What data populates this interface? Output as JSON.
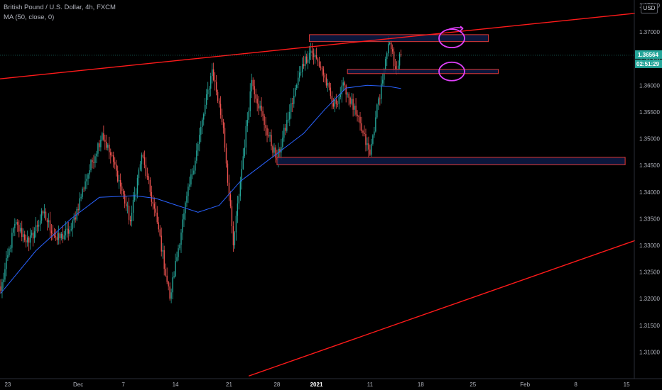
{
  "header": {
    "symbol_line": "British Pound / U.S. Dollar, 4h, FXCM",
    "indicator_line": "MA (50, close, 0)"
  },
  "currency_button": "USD",
  "colors": {
    "background": "#000000",
    "up_candle": "#26a69a",
    "down_candle": "#ef5350",
    "moving_average": "#2962ff",
    "trendline": "#ff1a1a",
    "zone_fill": "#0d1a45",
    "zone_border": "#e53935",
    "annotation": "#e040fb",
    "price_tag": "#26a69a"
  },
  "chart_data": {
    "type": "candlestick",
    "symbol": "British Pound / U.S. Dollar",
    "timeframe": "4h",
    "source": "FXCM",
    "ylim": [
      1.305,
      1.376
    ],
    "y_ticks": [
      "1.37500",
      "1.37000",
      "1.36500",
      "1.36000",
      "1.35500",
      "1.35000",
      "1.34500",
      "1.34000",
      "1.33500",
      "1.33000",
      "1.32500",
      "1.32000",
      "1.31500",
      "1.31000"
    ],
    "x_ticks": [
      {
        "label": "23",
        "bar": 5
      },
      {
        "label": "Dec",
        "bar": 55
      },
      {
        "label": "7",
        "bar": 87
      },
      {
        "label": "14",
        "bar": 124
      },
      {
        "label": "21",
        "bar": 162
      },
      {
        "label": "28",
        "bar": 196
      },
      {
        "label": "2021",
        "bar": 224,
        "bold": true
      },
      {
        "label": "11",
        "bar": 262
      },
      {
        "label": "18",
        "bar": 298
      },
      {
        "label": "25",
        "bar": 335
      },
      {
        "label": "Feb",
        "bar": 372
      },
      {
        "label": "8",
        "bar": 408
      },
      {
        "label": "15",
        "bar": 444
      }
    ],
    "last_bar_index": 284,
    "total_slots": 450,
    "current_price": "1.36564",
    "countdown": "02:51:29",
    "key_closes": [
      {
        "bar": 0,
        "close": 1.3215
      },
      {
        "bar": 10,
        "close": 1.334
      },
      {
        "bar": 20,
        "close": 1.3305
      },
      {
        "bar": 30,
        "close": 1.336
      },
      {
        "bar": 40,
        "close": 1.331
      },
      {
        "bar": 50,
        "close": 1.333
      },
      {
        "bar": 60,
        "close": 1.342
      },
      {
        "bar": 72,
        "close": 1.351
      },
      {
        "bar": 82,
        "close": 1.344
      },
      {
        "bar": 92,
        "close": 1.3345
      },
      {
        "bar": 100,
        "close": 1.347
      },
      {
        "bar": 112,
        "close": 1.333
      },
      {
        "bar": 120,
        "close": 1.32
      },
      {
        "bar": 130,
        "close": 1.336
      },
      {
        "bar": 140,
        "close": 1.349
      },
      {
        "bar": 150,
        "close": 1.363
      },
      {
        "bar": 158,
        "close": 1.352
      },
      {
        "bar": 165,
        "close": 1.33
      },
      {
        "bar": 170,
        "close": 1.342
      },
      {
        "bar": 178,
        "close": 1.361
      },
      {
        "bar": 188,
        "close": 1.352
      },
      {
        "bar": 196,
        "close": 1.346
      },
      {
        "bar": 205,
        "close": 1.355
      },
      {
        "bar": 214,
        "close": 1.364
      },
      {
        "bar": 220,
        "close": 1.3665
      },
      {
        "bar": 228,
        "close": 1.363
      },
      {
        "bar": 236,
        "close": 1.356
      },
      {
        "bar": 244,
        "close": 1.36
      },
      {
        "bar": 252,
        "close": 1.3545
      },
      {
        "bar": 262,
        "close": 1.347
      },
      {
        "bar": 266,
        "close": 1.354
      },
      {
        "bar": 272,
        "close": 1.363
      },
      {
        "bar": 276,
        "close": 1.368
      },
      {
        "bar": 280,
        "close": 1.363
      },
      {
        "bar": 284,
        "close": 1.3656
      }
    ],
    "moving_average": {
      "period": 50,
      "points": [
        {
          "bar": 0,
          "value": 1.321
        },
        {
          "bar": 25,
          "value": 1.329
        },
        {
          "bar": 50,
          "value": 1.335
        },
        {
          "bar": 70,
          "value": 1.339
        },
        {
          "bar": 95,
          "value": 1.3393
        },
        {
          "bar": 110,
          "value": 1.3388
        },
        {
          "bar": 125,
          "value": 1.3375
        },
        {
          "bar": 140,
          "value": 1.3362
        },
        {
          "bar": 155,
          "value": 1.3375
        },
        {
          "bar": 170,
          "value": 1.342
        },
        {
          "bar": 185,
          "value": 1.345
        },
        {
          "bar": 200,
          "value": 1.348
        },
        {
          "bar": 215,
          "value": 1.351
        },
        {
          "bar": 230,
          "value": 1.3555
        },
        {
          "bar": 245,
          "value": 1.3595
        },
        {
          "bar": 260,
          "value": 1.36
        },
        {
          "bar": 275,
          "value": 1.3598
        },
        {
          "bar": 284,
          "value": 1.3594
        }
      ]
    },
    "trendlines": [
      {
        "from": {
          "bar": -1,
          "price": 1.3612
        },
        "to": {
          "bar": 450,
          "price": 1.3735
        }
      },
      {
        "from": {
          "bar": 176,
          "price": 1.3055
        },
        "to": {
          "bar": 450,
          "price": 1.3309
        }
      }
    ],
    "zones": [
      {
        "bar_from": 219,
        "bar_to": 346,
        "price_top": 1.3695,
        "price_bottom": 1.3682
      },
      {
        "bar_from": 246,
        "bar_to": 353,
        "price_top": 1.363,
        "price_bottom": 1.3622
      },
      {
        "bar_from": 196,
        "bar_to": 443,
        "price_top": 1.3465,
        "price_bottom": 1.3451
      }
    ],
    "annotations": [
      {
        "type": "ellipse",
        "bar": 320,
        "price": 1.3688
      },
      {
        "type": "ellipse",
        "bar": 320,
        "price": 1.3626
      }
    ]
  }
}
